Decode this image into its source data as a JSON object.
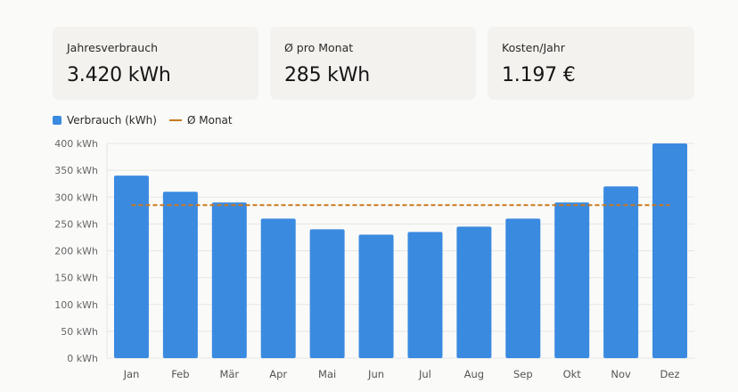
{
  "cards": [
    {
      "label": "Jahresverbrauch",
      "value": "3.420 kWh"
    },
    {
      "label": "Ø pro Monat",
      "value": "285 kWh"
    },
    {
      "label": "Kosten/Jahr",
      "value": "1.197 €"
    }
  ],
  "chart_data": {
    "type": "bar",
    "categories": [
      "Jan",
      "Feb",
      "Mär",
      "Apr",
      "Mai",
      "Jun",
      "Jul",
      "Aug",
      "Sep",
      "Okt",
      "Nov",
      "Dez"
    ],
    "series": [
      {
        "name": "Verbrauch (kWh)",
        "type": "bar",
        "color": "#3a8ae0",
        "values": [
          340,
          310,
          290,
          260,
          240,
          230,
          235,
          245,
          260,
          290,
          320,
          400
        ]
      },
      {
        "name": "Ø Monat",
        "type": "line",
        "style": "dashed",
        "color": "#c9781d",
        "values": [
          285,
          285,
          285,
          285,
          285,
          285,
          285,
          285,
          285,
          285,
          285,
          285
        ]
      }
    ],
    "yticks": [
      "0 kWh",
      "50 kWh",
      "100 kWh",
      "150 kWh",
      "200 kWh",
      "250 kWh",
      "300 kWh",
      "350 kWh",
      "400 kWh"
    ],
    "ylim": [
      0,
      400
    ],
    "grid": true,
    "legend": "top-left"
  }
}
